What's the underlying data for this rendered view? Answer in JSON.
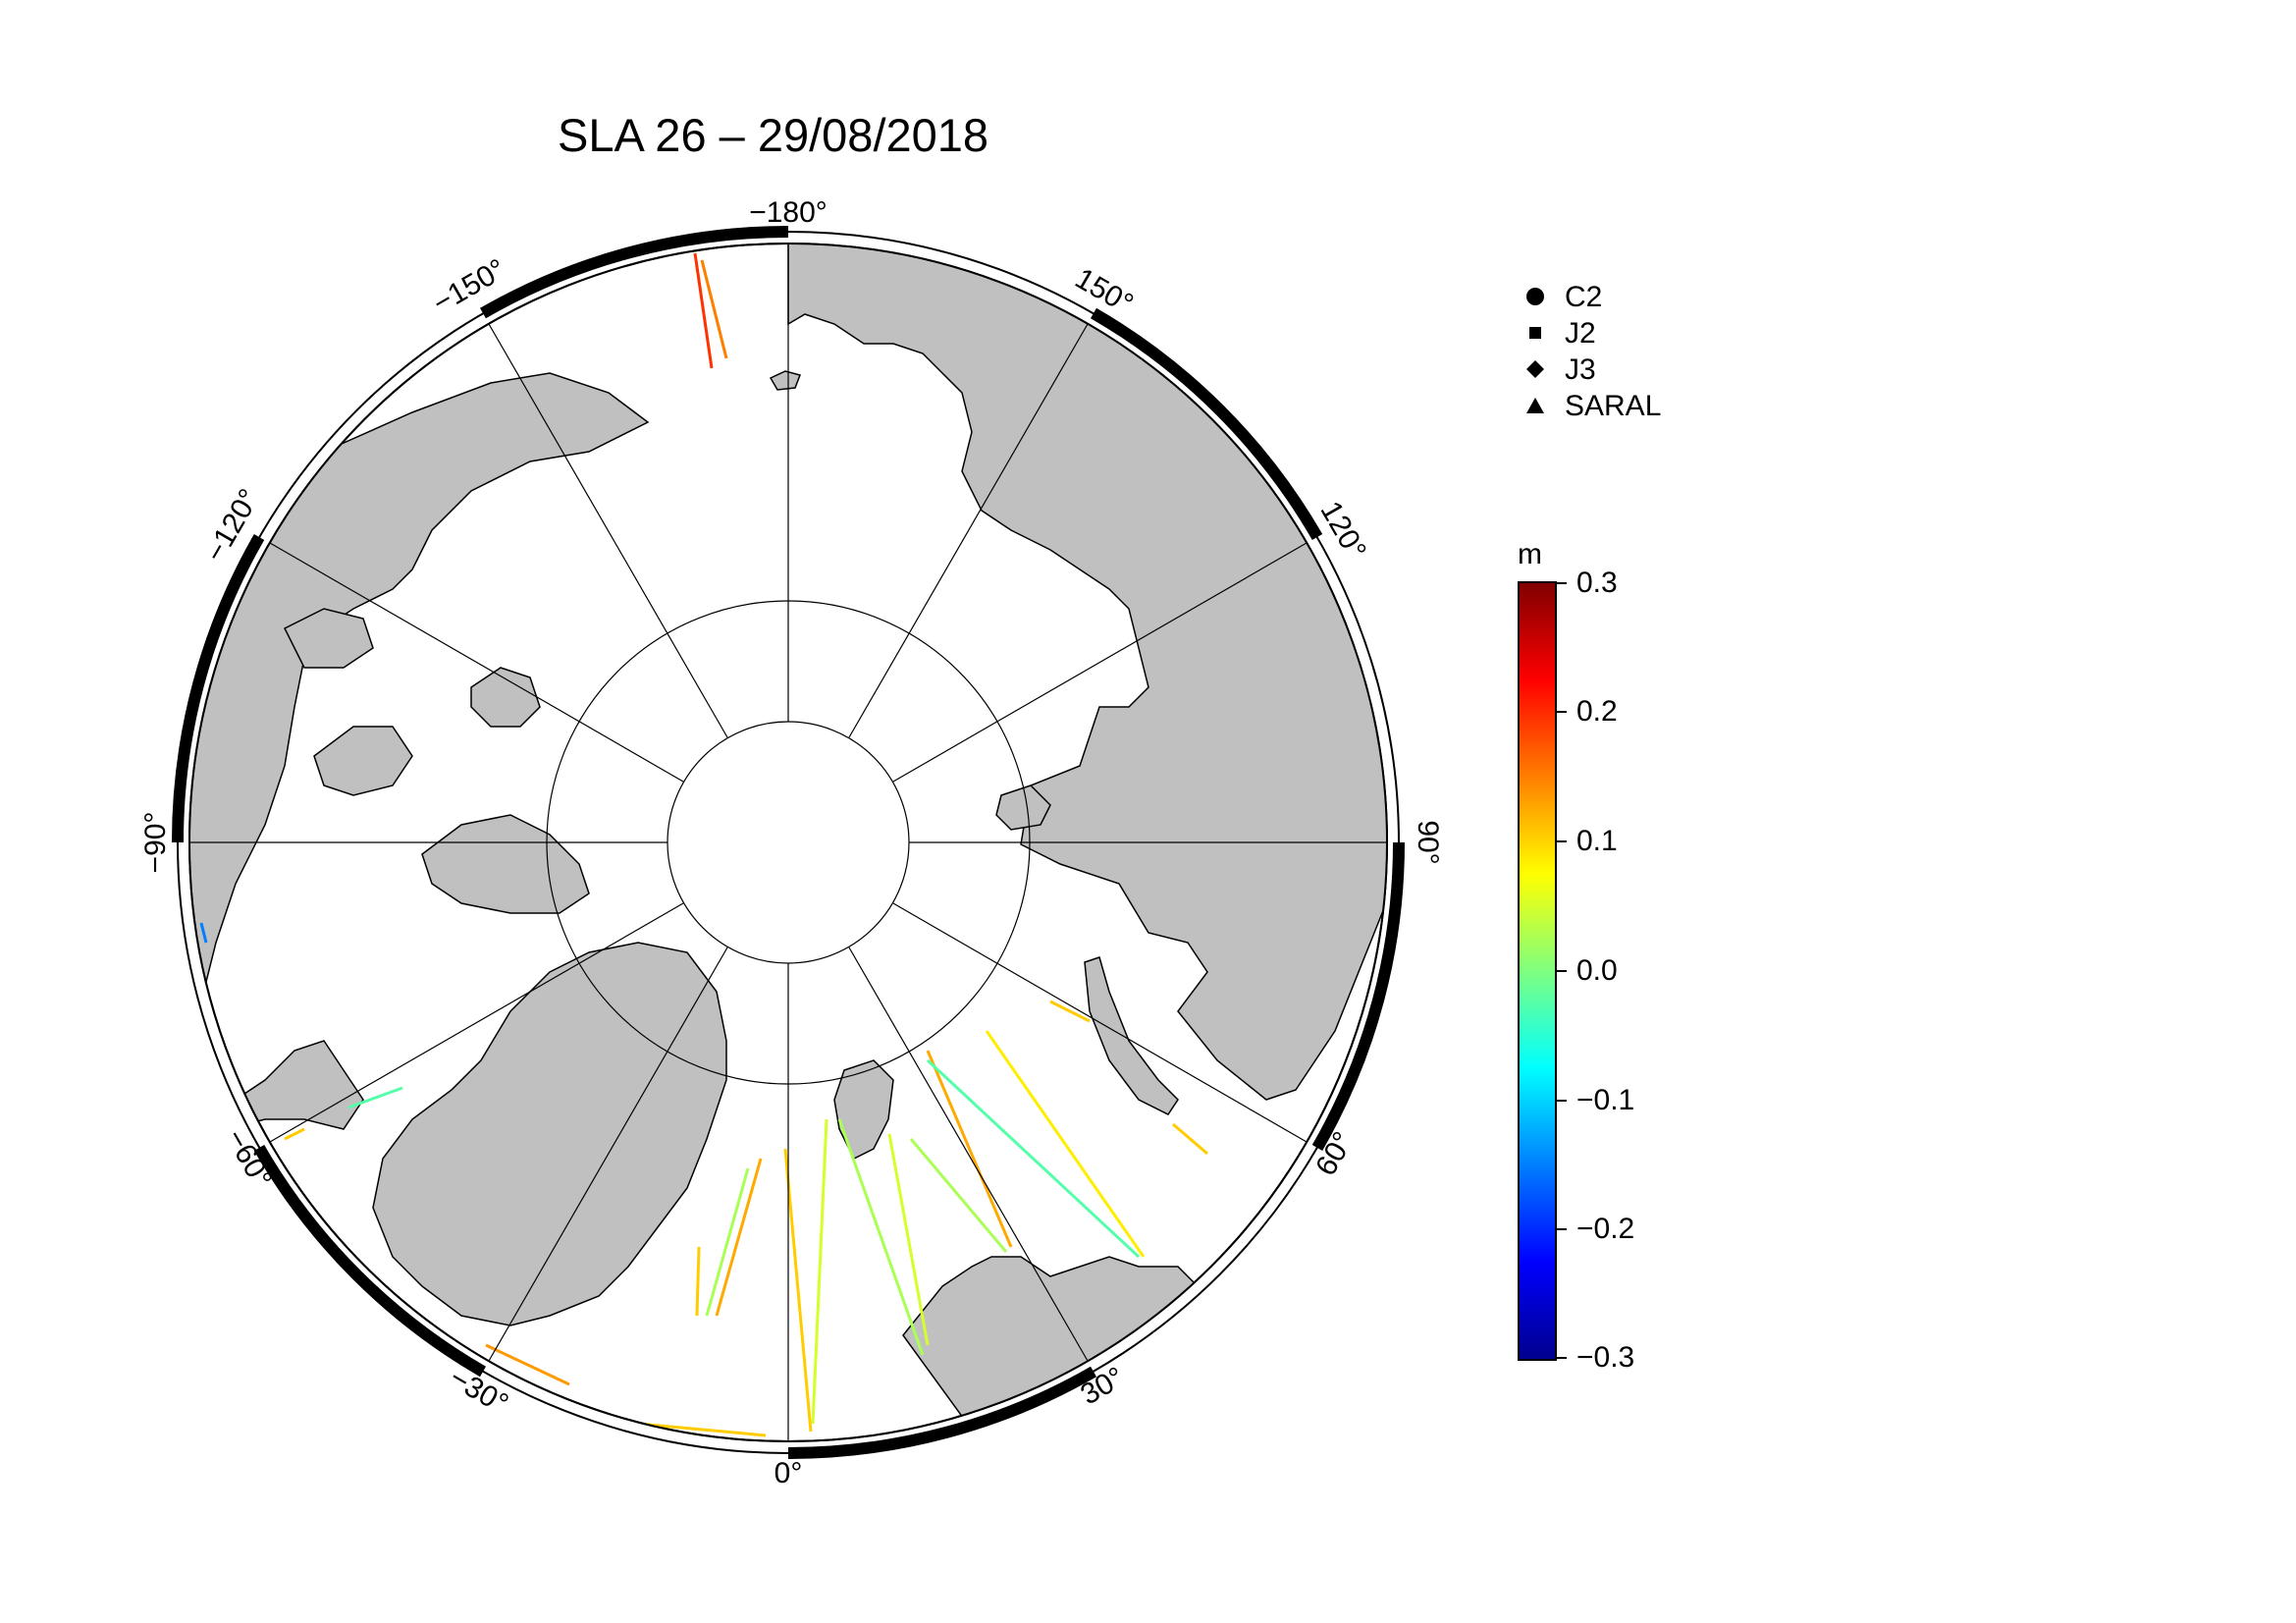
{
  "title": "SLA 26 – 29/08/2018",
  "longitude_labels": [
    "−180°",
    "150°",
    "120°",
    "90°",
    "60°",
    "30°",
    "0°",
    "−30°",
    "−60°",
    "−90°",
    "−120°",
    "−150°"
  ],
  "legend": {
    "items": [
      {
        "symbol": "circle",
        "label": "C2"
      },
      {
        "symbol": "square",
        "label": "J2"
      },
      {
        "symbol": "diamond",
        "label": "J3"
      },
      {
        "symbol": "triangle",
        "label": "SARAL"
      }
    ]
  },
  "colorbar": {
    "unit": "m",
    "ticks": [
      "0.3",
      "0.2",
      "0.1",
      "0.0",
      "−0.1",
      "−0.2",
      "−0.3"
    ],
    "min": -0.3,
    "max": 0.3,
    "colormap": [
      "#00008f",
      "#0000ff",
      "#007fff",
      "#00ffff",
      "#7fff7f",
      "#ffff00",
      "#ff7f00",
      "#ff0000",
      "#800000"
    ]
  },
  "colors": {
    "land": "#c0c0c0",
    "ocean": "#ffffff",
    "frame": "#000000",
    "graticule": "#000000"
  }
}
